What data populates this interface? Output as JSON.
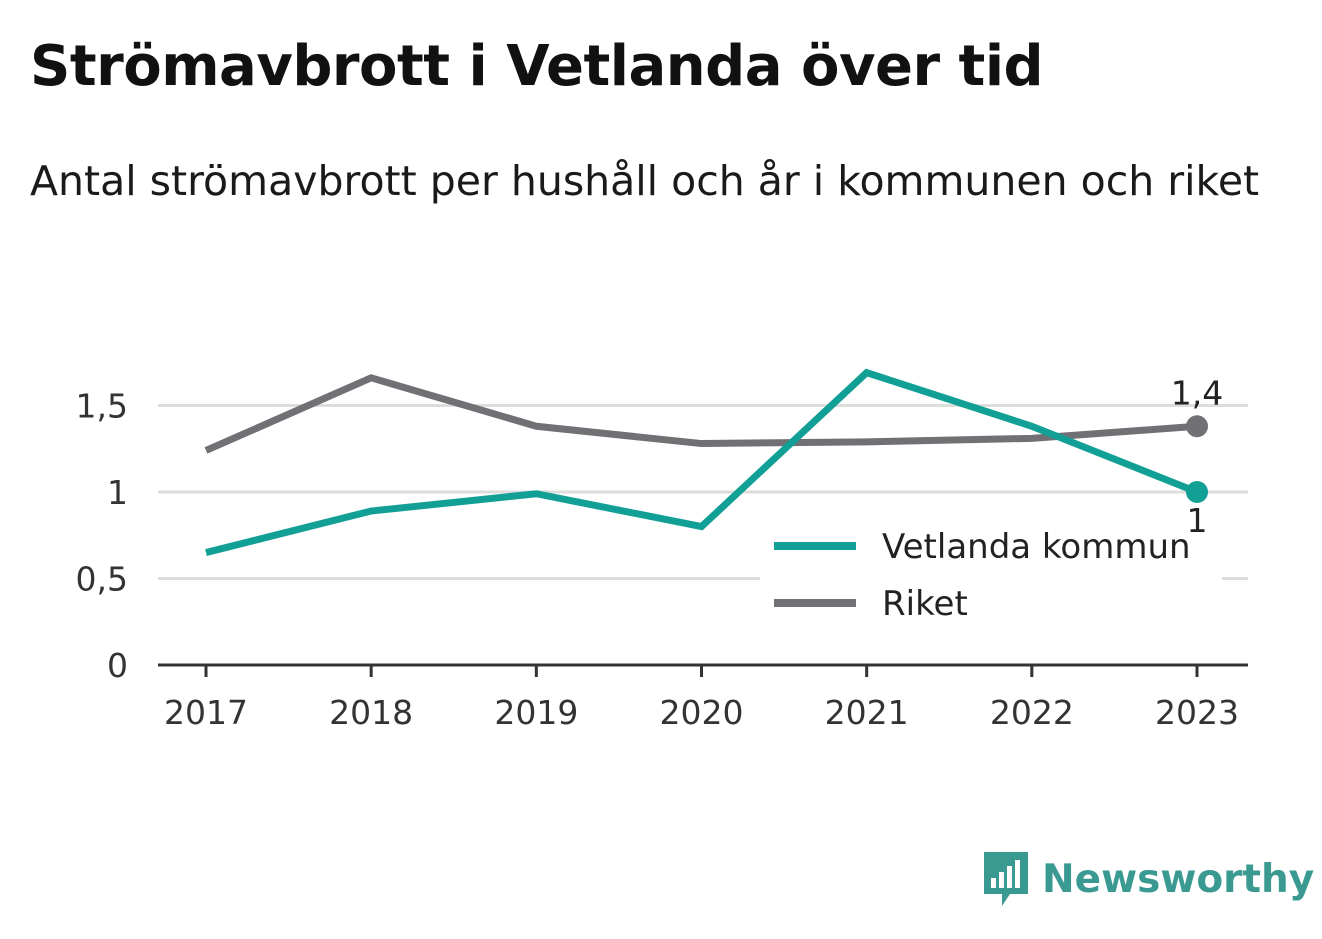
{
  "title": "Strömavbrott i Vetlanda över tid",
  "subtitle": "Antal strömavbrott per hushåll och år i kommunen och riket",
  "brand": {
    "name": "Newsworthy",
    "icon": "newsworthy-logo-icon"
  },
  "colors": {
    "vetlanda": "#12a096",
    "riket": "#707075",
    "grid": "#dddddd",
    "axis": "#333333"
  },
  "chart_data": {
    "type": "line",
    "x": [
      "2017",
      "2018",
      "2019",
      "2020",
      "2021",
      "2022",
      "2023"
    ],
    "yticks": [
      "0",
      "0,5",
      "1",
      "1,5"
    ],
    "ytick_values": [
      0,
      0.5,
      1,
      1.5
    ],
    "ylim": [
      0,
      1.75
    ],
    "grid": true,
    "legend_position": "bottom-right",
    "series": [
      {
        "name": "Vetlanda kommun",
        "color": "#12a096",
        "values": [
          0.65,
          0.89,
          0.99,
          0.8,
          1.69,
          1.38,
          1.0
        ],
        "end_label": "1"
      },
      {
        "name": "Riket",
        "color": "#707075",
        "values": [
          1.24,
          1.66,
          1.38,
          1.28,
          1.29,
          1.31,
          1.38
        ],
        "end_label": "1,4"
      }
    ]
  }
}
